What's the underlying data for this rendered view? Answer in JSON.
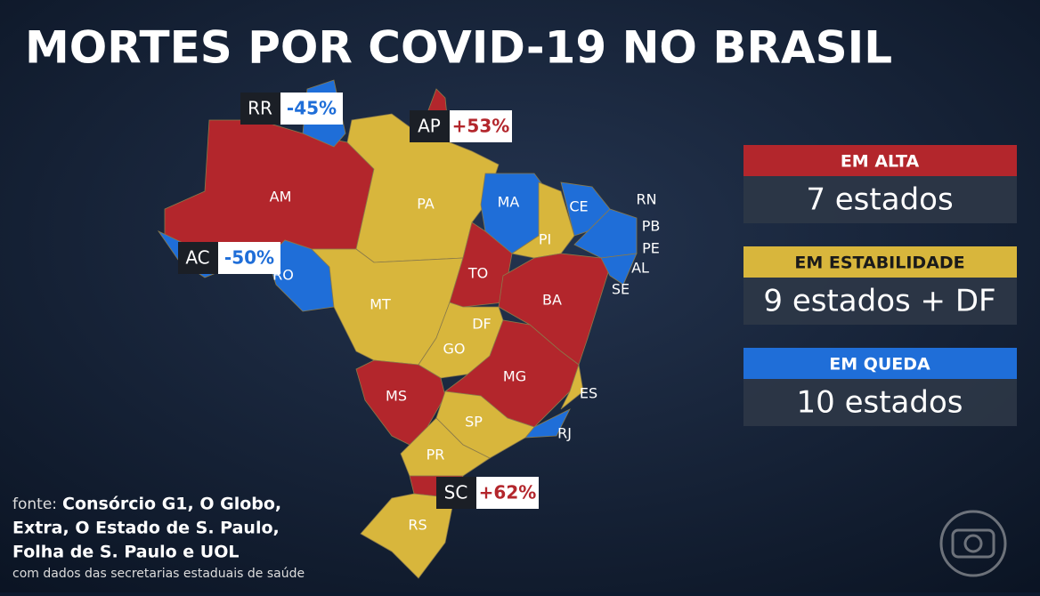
{
  "title": "MORTES POR COVID-19 NO BRASIL",
  "callouts": [
    {
      "state": "RR",
      "change": "-45%"
    },
    {
      "state": "AP",
      "change": "+53%"
    },
    {
      "state": "AC",
      "change": "-50%"
    },
    {
      "state": "SC",
      "change": "+62%"
    }
  ],
  "state_labels": [
    "AM",
    "PA",
    "MA",
    "CE",
    "RN",
    "PB",
    "PE",
    "PI",
    "AL",
    "SE",
    "TO",
    "BA",
    "RO",
    "MT",
    "DF",
    "GO",
    "MG",
    "ES",
    "MS",
    "SP",
    "RJ",
    "PR",
    "RS"
  ],
  "legend": [
    {
      "heading": "EM ALTA",
      "count": "7 estados"
    },
    {
      "heading": "EM ESTABILIDADE",
      "count": "9 estados + DF"
    },
    {
      "heading": "EM QUEDA",
      "count": "10 estados"
    }
  ],
  "source": {
    "label": "fonte:",
    "lines": [
      "Consórcio G1, O Globo,",
      "Extra, O Estado de S. Paulo,",
      "Folha de S. Paulo e UOL"
    ],
    "note": "com dados das secretarias estaduais de saúde"
  }
}
